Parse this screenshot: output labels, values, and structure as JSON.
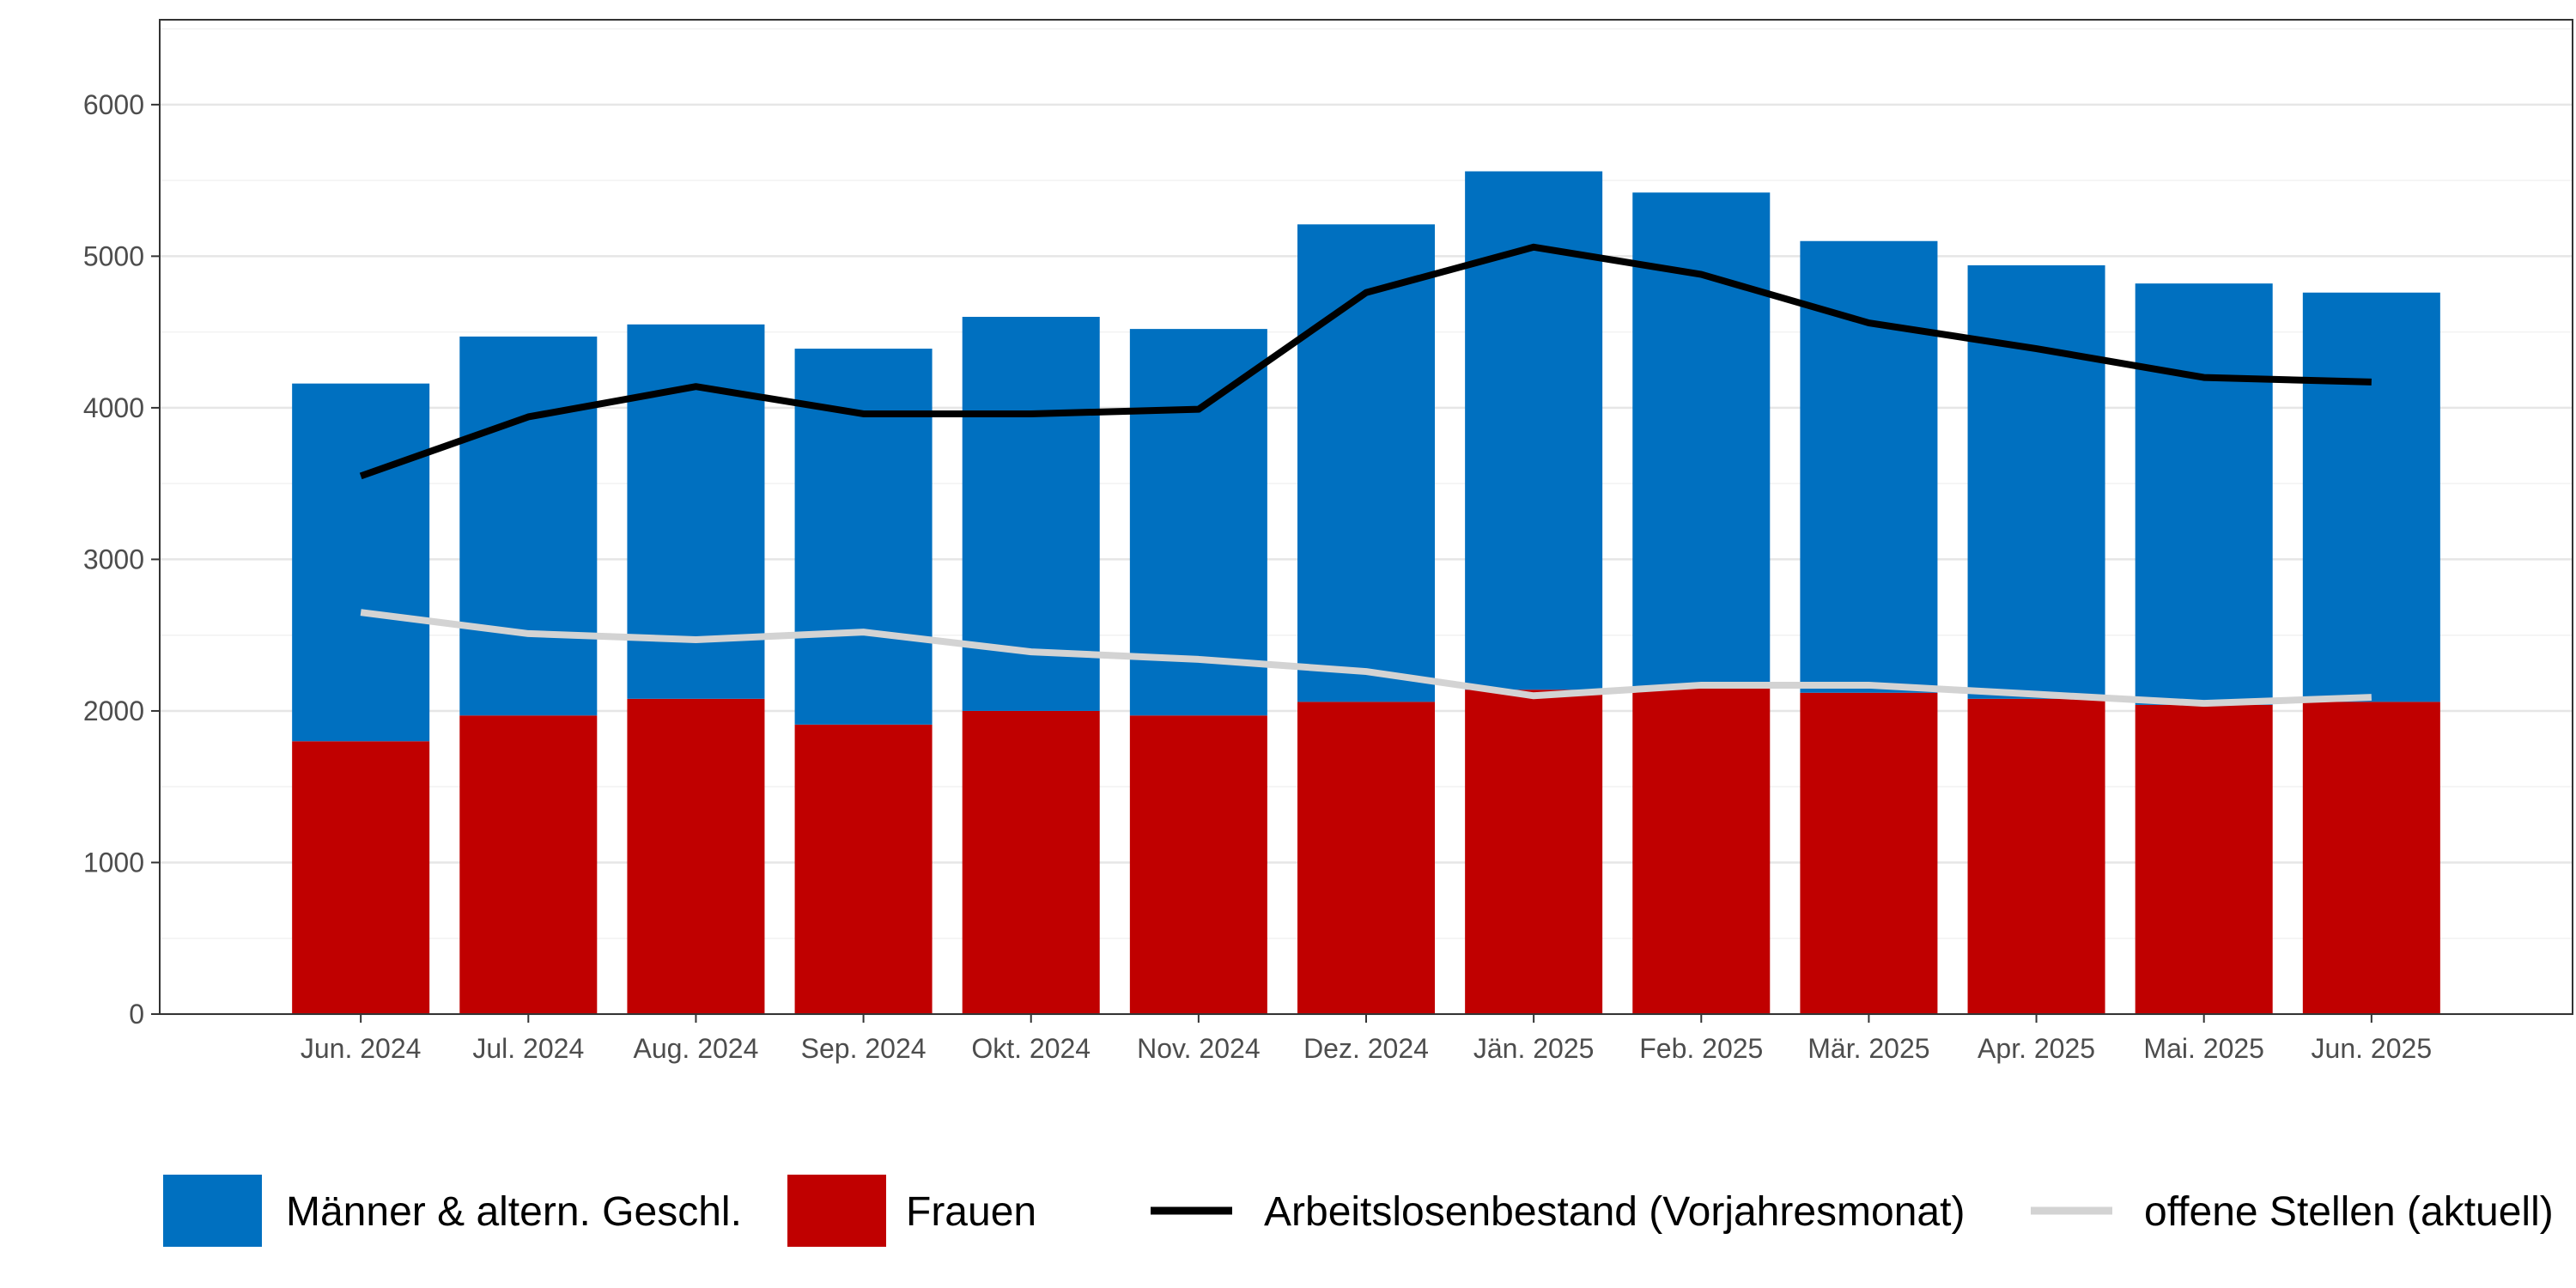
{
  "chart_data": {
    "type": "bar",
    "stacked": true,
    "categories": [
      "Jun. 2024",
      "Jul. 2024",
      "Aug. 2024",
      "Sep. 2024",
      "Okt. 2024",
      "Nov. 2024",
      "Dez. 2024",
      "Jän. 2025",
      "Feb. 2025",
      "Mär. 2025",
      "Apr. 2025",
      "Mai. 2025",
      "Jun. 2025"
    ],
    "series": [
      {
        "name": "Frauen",
        "kind": "bar",
        "color": "#c00000",
        "values": [
          1800,
          1970,
          2080,
          1910,
          2000,
          1970,
          2060,
          2140,
          2150,
          2120,
          2080,
          2040,
          2060
        ]
      },
      {
        "name": "Männer & altern. Geschl.",
        "kind": "bar",
        "color": "#0070c0",
        "values": [
          2360,
          2500,
          2470,
          2480,
          2600,
          2550,
          3150,
          3420,
          3270,
          2980,
          2860,
          2780,
          2700
        ]
      },
      {
        "name": "Arbeitslosenbestand (Vorjahresmonat)",
        "kind": "line",
        "color": "#000000",
        "values": [
          3550,
          3940,
          4140,
          3960,
          3960,
          3990,
          4760,
          5060,
          4880,
          4560,
          4390,
          4200,
          4170
        ]
      },
      {
        "name": "offene Stellen (aktuell)",
        "kind": "line",
        "color": "#d3d3d3",
        "values": [
          2650,
          2510,
          2470,
          2520,
          2390,
          2340,
          2260,
          2100,
          2170,
          2170,
          2110,
          2050,
          2090
        ]
      }
    ],
    "yticks": [
      0,
      1000,
      2000,
      3000,
      4000,
      5000,
      6000
    ],
    "ylim": [
      0,
      6560
    ],
    "grid": true,
    "legend_position": "bottom",
    "title": "",
    "xlabel": "",
    "ylabel": ""
  },
  "legend": {
    "items": [
      {
        "label": "Männer & altern. Geschl.",
        "type": "bar",
        "color": "#0070c0"
      },
      {
        "label": "Frauen",
        "type": "bar",
        "color": "#c00000"
      },
      {
        "label": "Arbeitslosenbestand (Vorjahresmonat)",
        "type": "line",
        "color": "#000000"
      },
      {
        "label": "offene Stellen (aktuell)",
        "type": "line",
        "color": "#d3d3d3"
      }
    ]
  }
}
